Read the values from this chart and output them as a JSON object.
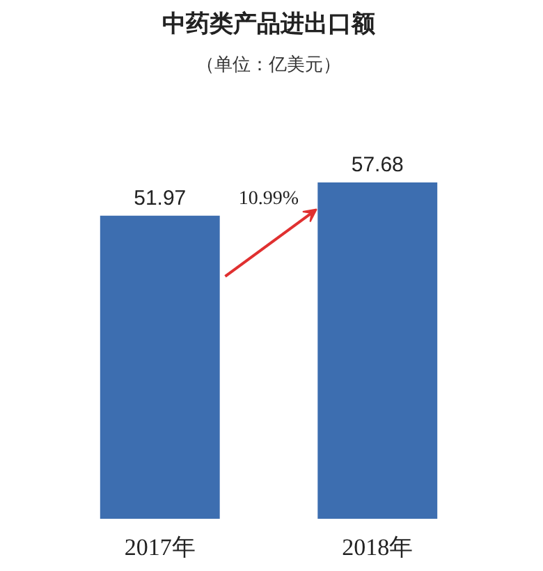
{
  "chart_data": {
    "type": "bar",
    "title": "中药类产品进出口额",
    "subtitle": "（单位：亿美元）",
    "categories": [
      "2017年",
      "2018年"
    ],
    "values": [
      51.97,
      57.68
    ],
    "color": "#3d6eb0",
    "data_labels": true,
    "annotations": [
      "10.99%"
    ]
  }
}
